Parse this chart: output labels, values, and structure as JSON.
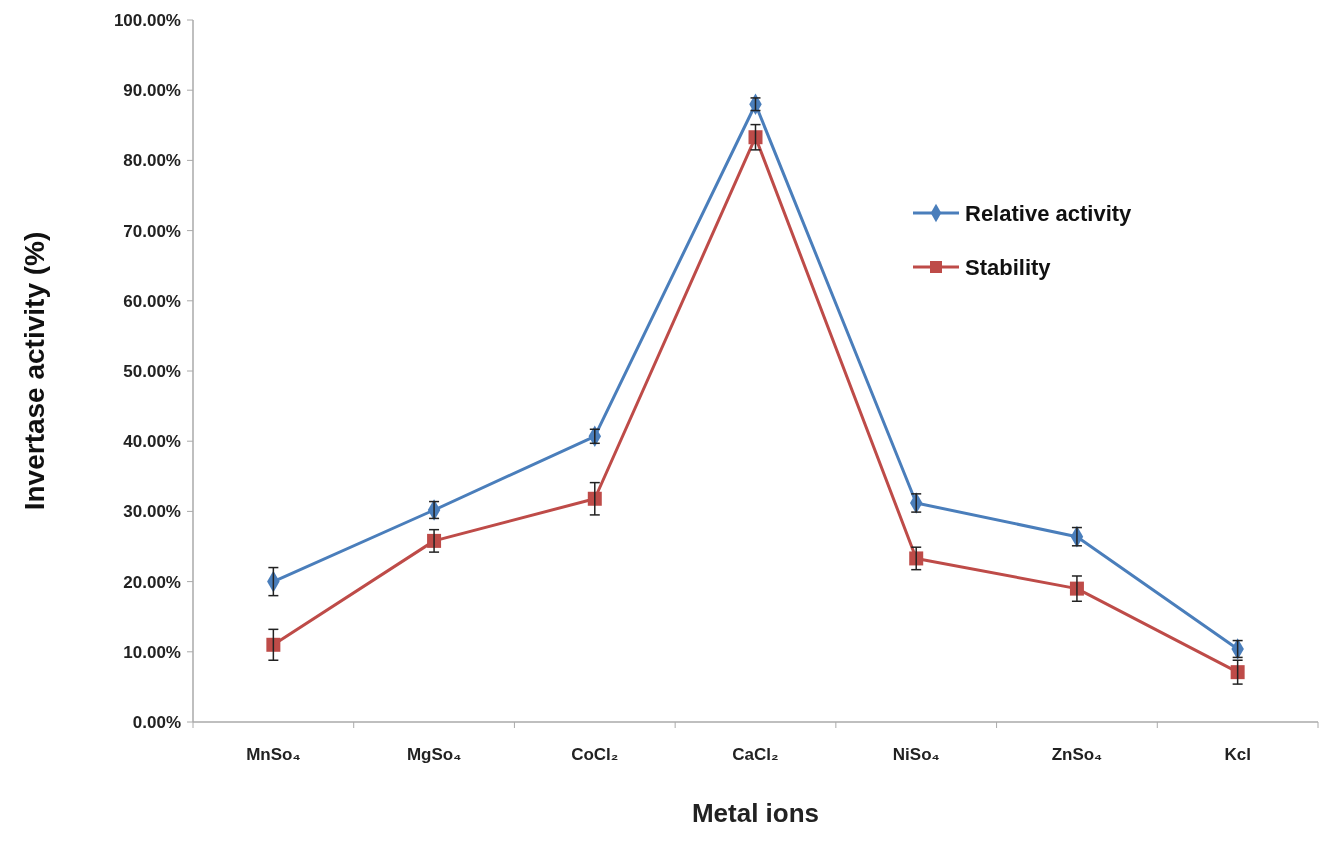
{
  "chart_data": {
    "type": "line",
    "xlabel": "Metal ions",
    "ylabel": "Invertase activity (%)",
    "categories": [
      "MnSo₄",
      "MgSo₄",
      "CoCl₂",
      "CaCl₂",
      "NiSo₄",
      "ZnSo₄",
      "Kcl"
    ],
    "series": [
      {
        "name": "Relative activity",
        "color": "#4a7ebb",
        "marker": "diamond",
        "values": [
          20,
          30.2,
          40.7,
          88,
          31.2,
          26.4,
          10.4
        ],
        "errors": [
          2,
          1.2,
          1,
          0.9,
          1.3,
          1.3,
          1.2
        ]
      },
      {
        "name": "Stability",
        "color": "#be4b48",
        "marker": "square",
        "values": [
          11,
          25.8,
          31.8,
          83.3,
          23.3,
          19,
          7.1
        ],
        "errors": [
          2.2,
          1.6,
          2.3,
          1.8,
          1.6,
          1.8,
          1.7
        ]
      }
    ],
    "ylim": [
      0,
      100
    ],
    "yticks": [
      {
        "value": 0,
        "label": "0.00%"
      },
      {
        "value": 10,
        "label": "10.00%"
      },
      {
        "value": 20,
        "label": "20.00%"
      },
      {
        "value": 30,
        "label": "30.00%"
      },
      {
        "value": 40,
        "label": "40.00%"
      },
      {
        "value": 50,
        "label": "50.00%"
      },
      {
        "value": 60,
        "label": "60.00%"
      },
      {
        "value": 70,
        "label": "70.00%"
      },
      {
        "value": 80,
        "label": "80.00%"
      },
      {
        "value": 90,
        "label": "90.00%"
      },
      {
        "value": 100,
        "label": "100.00%"
      }
    ],
    "grid": false,
    "legend": "right",
    "line_style": "solid"
  }
}
